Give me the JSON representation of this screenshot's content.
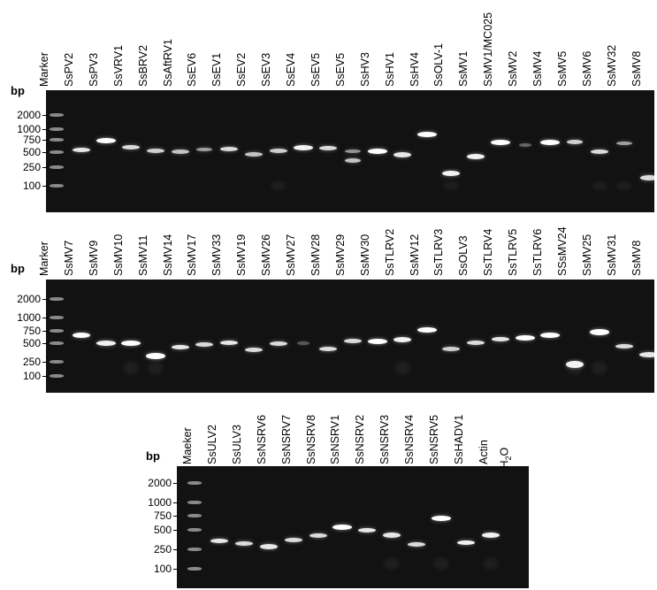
{
  "panels": [
    {
      "bp_label": "bp",
      "ticks": [
        "2000",
        "1000",
        "750",
        "500",
        "250",
        "100"
      ],
      "lanes": [
        "Marker",
        "SsPV2",
        "SsPV3",
        "SsVRV1",
        "SsBRV2",
        "SsAftRV1",
        "SsEV6",
        "SsEV1",
        "SsEV2",
        "SsEV3",
        "SsEV4",
        "SsEV5",
        "SsEV5",
        "SsHV3",
        "SsHV1",
        "SsHV4",
        "SsOLV-1",
        "SsMV1",
        "SsMV1/MC025",
        "SsMV2",
        "SsMV4",
        "SsMV5",
        "SsMV6",
        "SsMV32",
        "SsMV8"
      ]
    },
    {
      "bp_label": "bp",
      "ticks": [
        "2000",
        "1000",
        "750",
        "500",
        "250",
        "100"
      ],
      "lanes": [
        "Marker",
        "SsMV7",
        "SsMV9",
        "SsMV10",
        "SsMV11",
        "SsMV14",
        "SsMV17",
        "SsMV33",
        "SsMV19",
        "SsMV26",
        "SsMV27",
        "SsMV28",
        "SsMV29",
        "SsMV30",
        "SsTLRV2",
        "SsMV12",
        "SsTLRV3",
        "SsOLV3",
        "SsTLRV4",
        "SsTLRV5",
        "SsTLRV6",
        "SSsMV24",
        "SsMV25",
        "SsMV31",
        "SsMV8"
      ]
    },
    {
      "bp_label": "bp",
      "ticks": [
        "2000",
        "1000",
        "750",
        "500",
        "250",
        "100"
      ],
      "lanes": [
        "Maeker",
        "SsULV2",
        "SsULV3",
        "SsNSRV6",
        "SsNSRV7",
        "SsNSRV8",
        "SsNSRV1",
        "SsNSRV2",
        "SsNSRV3",
        "SsNSRV4",
        "SsNSRV5",
        "SsHADV1",
        "Actin"
      ],
      "last_lane": {
        "base": "H",
        "sub": "2",
        "tail": "O"
      }
    }
  ],
  "colors": {
    "gel": "#121212",
    "band": "#ffffff",
    "ladder": "#9a9a9a"
  }
}
